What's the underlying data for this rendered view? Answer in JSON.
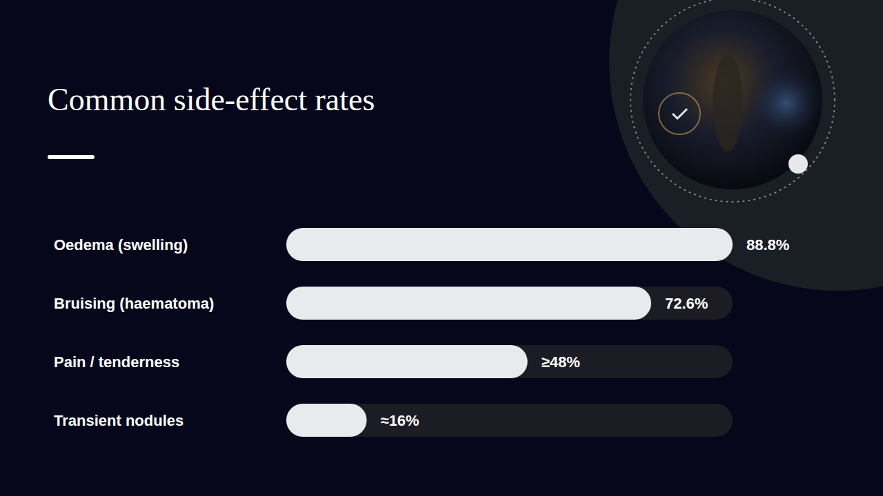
{
  "chart_data": {
    "type": "bar",
    "title": "Common side-effect rates",
    "orientation": "horizontal",
    "categories": [
      "Oedema (swelling)",
      "Bruising (haematoma)",
      "Pain / tenderness",
      "Transient nodules"
    ],
    "values": [
      88.8,
      72.6,
      48,
      16
    ],
    "value_labels": [
      "88.8%",
      "72.6%",
      "≥48%",
      "≈16%"
    ],
    "xlim": [
      0,
      88.8
    ],
    "color": "#e9eaed",
    "data_labels": true,
    "tick_labels": false
  }
}
